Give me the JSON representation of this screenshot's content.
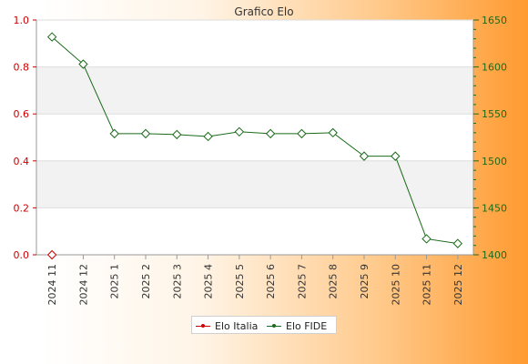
{
  "chart_data": {
    "type": "line",
    "title": "Grafico Elo",
    "categories": [
      "2024 11",
      "2024 12",
      "2025 1",
      "2025 2",
      "2025 3",
      "2025 4",
      "2025 5",
      "2025 6",
      "2025 7",
      "2025 8",
      "2025 9",
      "2025 10",
      "2025 11",
      "2025 12"
    ],
    "axes": {
      "left": {
        "min": 0,
        "max": 1,
        "ticks": [
          "0.0",
          "0.2",
          "0.4",
          "0.6",
          "0.8",
          "1.0"
        ]
      },
      "right": {
        "min": 1400,
        "max": 1650,
        "ticks": [
          "1400",
          "1450",
          "1500",
          "1550",
          "1600",
          "1650"
        ]
      }
    },
    "grid": true,
    "legend_position": "bottom",
    "series": [
      {
        "name": "Elo Italia",
        "axis": "left",
        "color": "#cc0000",
        "values": [
          0,
          null,
          null,
          null,
          null,
          null,
          null,
          null,
          null,
          null,
          null,
          null,
          null,
          null
        ]
      },
      {
        "name": "Elo FIDE",
        "axis": "right",
        "color": "#1a6b1a",
        "values": [
          1632,
          1603,
          1529,
          1529,
          1528,
          1526,
          1531,
          1529,
          1529,
          1530,
          1505,
          1505,
          1417,
          1412
        ]
      }
    ]
  }
}
